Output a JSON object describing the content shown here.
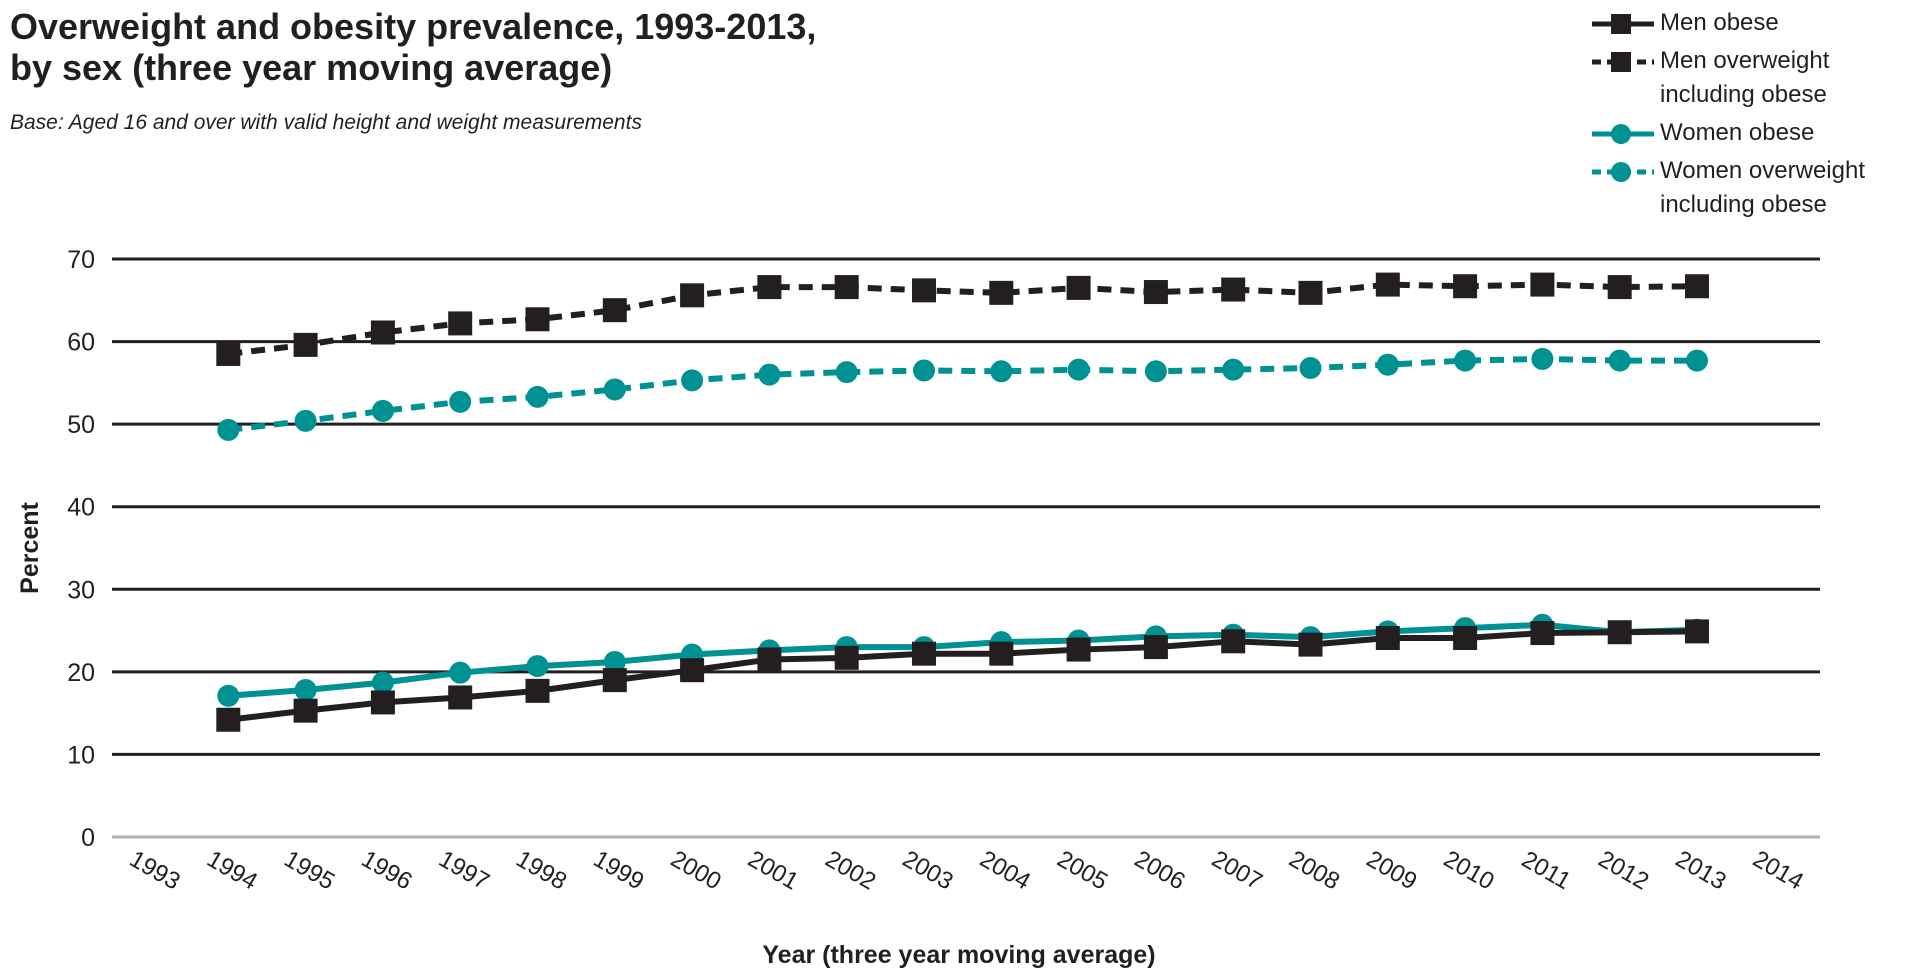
{
  "chart_data": {
    "type": "line",
    "title_lines": [
      "Overweight and obesity prevalence, 1993-2013,",
      "by sex (three year moving average)"
    ],
    "subtitle": "Base: Aged 16 and over with valid height and weight measurements",
    "xlabel": "Year (three year moving average)",
    "ylabel": "Percent",
    "x_ticks": [
      "1993",
      "1994",
      "1995",
      "1996",
      "1997",
      "1998",
      "1999",
      "2000",
      "2001",
      "2002",
      "2003",
      "2004",
      "2005",
      "2006",
      "2007",
      "2008",
      "2009",
      "2010",
      "2011",
      "2012",
      "2013",
      "2014"
    ],
    "x": [
      1994,
      1995,
      1996,
      1997,
      1998,
      1999,
      2000,
      2001,
      2002,
      2003,
      2004,
      2005,
      2006,
      2007,
      2008,
      2009,
      2010,
      2011,
      2012,
      2013
    ],
    "xlim": [
      1993,
      2014
    ],
    "ylim": [
      0,
      70
    ],
    "y_ticks": [
      0,
      10,
      20,
      30,
      40,
      50,
      60,
      70
    ],
    "grid": true,
    "legend_position": "top-right",
    "series": [
      {
        "name": "Men obese",
        "color": "#231f20",
        "dash": "solid",
        "marker": "square",
        "values": [
          14.2,
          15.3,
          16.3,
          16.9,
          17.7,
          19.0,
          20.2,
          21.5,
          21.7,
          22.2,
          22.2,
          22.7,
          23.0,
          23.7,
          23.3,
          24.1,
          24.1,
          24.7,
          24.8,
          24.9
        ]
      },
      {
        "name": "Men overweight including obese",
        "legend_lines": [
          "Men overweight",
          "including obese"
        ],
        "color": "#231f20",
        "dash": "dashed",
        "marker": "square",
        "values": [
          58.5,
          59.6,
          61.1,
          62.2,
          62.7,
          63.8,
          65.6,
          66.6,
          66.6,
          66.2,
          65.9,
          66.5,
          66.0,
          66.3,
          65.9,
          66.9,
          66.7,
          66.9,
          66.6,
          66.7
        ]
      },
      {
        "name": "Women obese",
        "color": "#009193",
        "dash": "solid",
        "marker": "circle",
        "values": [
          17.1,
          17.8,
          18.7,
          19.9,
          20.7,
          21.2,
          22.1,
          22.6,
          23.0,
          23.0,
          23.6,
          23.8,
          24.3,
          24.5,
          24.2,
          24.9,
          25.3,
          25.7,
          24.8,
          25.1
        ]
      },
      {
        "name": "Women overweight including obese",
        "legend_lines": [
          "Women overweight",
          "including obese"
        ],
        "color": "#009193",
        "dash": "dashed",
        "marker": "circle",
        "values": [
          49.3,
          50.4,
          51.6,
          52.7,
          53.3,
          54.2,
          55.3,
          56.0,
          56.3,
          56.5,
          56.4,
          56.6,
          56.4,
          56.6,
          56.8,
          57.2,
          57.7,
          57.9,
          57.7,
          57.7
        ]
      }
    ]
  }
}
